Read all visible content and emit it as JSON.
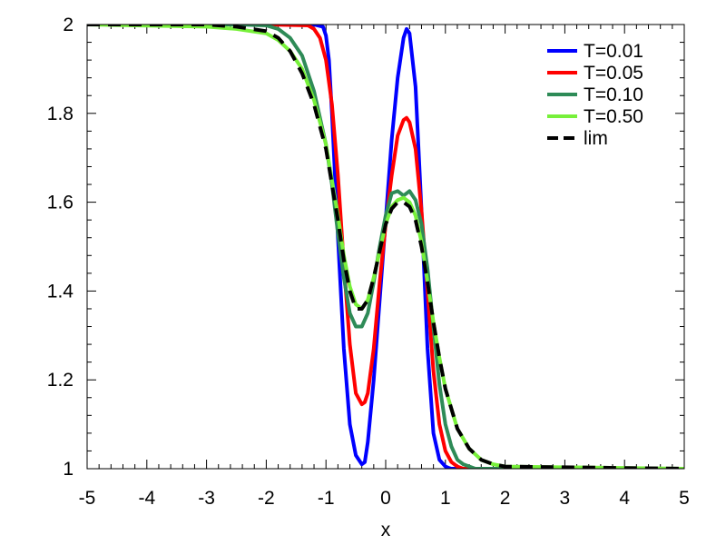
{
  "chart_data": {
    "type": "line",
    "title": "",
    "xlabel": "x",
    "ylabel": "",
    "xlim": [
      -5,
      5
    ],
    "ylim": [
      1,
      2
    ],
    "x_ticks": [
      -5,
      -4,
      -3,
      -2,
      -1,
      0,
      1,
      2,
      3,
      4,
      5
    ],
    "x_tick_labels": [
      "-5",
      "-4",
      "-3",
      "-2",
      "-1",
      "0",
      "1",
      "2",
      "3",
      "4",
      "5"
    ],
    "y_ticks": [
      1,
      1.2,
      1.4,
      1.6,
      1.8,
      2
    ],
    "y_tick_labels": [
      "1",
      "1.2",
      "1.4",
      "1.6",
      "1.8",
      "2"
    ],
    "grid": false,
    "legend_position": "top-right",
    "series": [
      {
        "name": "T=0.01",
        "color": "#0000ff",
        "dash": "solid",
        "x": [
          -5,
          -2,
          -1.2,
          -1.05,
          -1.0,
          -0.95,
          -0.9,
          -0.8,
          -0.7,
          -0.6,
          -0.5,
          -0.4,
          -0.35,
          -0.3,
          -0.2,
          -0.1,
          0,
          0.1,
          0.2,
          0.3,
          0.35,
          0.4,
          0.5,
          0.6,
          0.7,
          0.8,
          0.9,
          1.0,
          1.05,
          1.1,
          1.2,
          1.5,
          5
        ],
        "y": [
          2,
          2,
          2,
          1.995,
          1.975,
          1.92,
          1.8,
          1.52,
          1.27,
          1.1,
          1.03,
          1.01,
          1.015,
          1.06,
          1.2,
          1.38,
          1.56,
          1.74,
          1.88,
          1.97,
          1.99,
          1.98,
          1.86,
          1.58,
          1.27,
          1.08,
          1.02,
          1.005,
          1.002,
          1.0,
          1.0,
          1.0,
          1.0
        ]
      },
      {
        "name": "T=0.05",
        "color": "#ff0000",
        "dash": "solid",
        "x": [
          -5,
          -2,
          -1.3,
          -1.2,
          -1.1,
          -1.0,
          -0.9,
          -0.8,
          -0.7,
          -0.6,
          -0.5,
          -0.4,
          -0.35,
          -0.3,
          -0.2,
          -0.1,
          0,
          0.1,
          0.2,
          0.3,
          0.35,
          0.4,
          0.5,
          0.6,
          0.7,
          0.8,
          0.9,
          1.0,
          1.1,
          1.2,
          1.3,
          1.5,
          5
        ],
        "y": [
          2,
          2,
          1.998,
          1.99,
          1.97,
          1.92,
          1.82,
          1.66,
          1.46,
          1.28,
          1.17,
          1.145,
          1.15,
          1.17,
          1.27,
          1.42,
          1.55,
          1.66,
          1.75,
          1.785,
          1.79,
          1.78,
          1.72,
          1.58,
          1.4,
          1.22,
          1.1,
          1.04,
          1.015,
          1.005,
          1.0,
          1.0,
          1.0
        ]
      },
      {
        "name": "T=0.10",
        "color": "#2e8b57",
        "dash": "solid",
        "x": [
          -5,
          -2.5,
          -2,
          -1.8,
          -1.6,
          -1.4,
          -1.2,
          -1.0,
          -0.9,
          -0.8,
          -0.7,
          -0.6,
          -0.5,
          -0.4,
          -0.3,
          -0.2,
          -0.1,
          0,
          0.1,
          0.2,
          0.3,
          0.4,
          0.5,
          0.6,
          0.7,
          0.8,
          0.9,
          1.0,
          1.1,
          1.2,
          1.3,
          1.5,
          2,
          5
        ],
        "y": [
          2,
          2,
          1.998,
          1.99,
          1.97,
          1.93,
          1.85,
          1.73,
          1.64,
          1.53,
          1.43,
          1.35,
          1.32,
          1.32,
          1.35,
          1.42,
          1.5,
          1.57,
          1.62,
          1.625,
          1.615,
          1.625,
          1.605,
          1.55,
          1.45,
          1.32,
          1.19,
          1.1,
          1.05,
          1.02,
          1.01,
          1.0,
          1.0,
          1.0
        ]
      },
      {
        "name": "T=0.50",
        "color": "#77f03a",
        "dash": "solid",
        "x": [
          -5,
          -3,
          -2.5,
          -2,
          -1.8,
          -1.6,
          -1.4,
          -1.2,
          -1.0,
          -0.9,
          -0.8,
          -0.7,
          -0.6,
          -0.5,
          -0.4,
          -0.3,
          -0.2,
          -0.1,
          0,
          0.1,
          0.2,
          0.3,
          0.4,
          0.5,
          0.6,
          0.7,
          0.8,
          0.9,
          1.0,
          1.2,
          1.4,
          1.6,
          1.8,
          2.0,
          5
        ],
        "y": [
          2,
          1.995,
          1.99,
          1.98,
          1.965,
          1.94,
          1.9,
          1.83,
          1.73,
          1.65,
          1.57,
          1.48,
          1.41,
          1.37,
          1.36,
          1.38,
          1.43,
          1.49,
          1.55,
          1.59,
          1.605,
          1.61,
          1.6,
          1.57,
          1.51,
          1.42,
          1.33,
          1.25,
          1.18,
          1.09,
          1.045,
          1.02,
          1.01,
          1.005,
          1.0
        ]
      },
      {
        "name": "lim",
        "color": "#000000",
        "dash": "dashed",
        "x": [
          -5,
          -3,
          -2.5,
          -2,
          -1.8,
          -1.6,
          -1.4,
          -1.2,
          -1.0,
          -0.9,
          -0.8,
          -0.7,
          -0.6,
          -0.5,
          -0.4,
          -0.3,
          -0.2,
          -0.1,
          0,
          0.1,
          0.2,
          0.3,
          0.4,
          0.5,
          0.6,
          0.7,
          0.8,
          0.9,
          1.0,
          1.2,
          1.4,
          1.6,
          1.8,
          2.0,
          5
        ],
        "y": [
          2,
          2,
          1.995,
          1.985,
          1.97,
          1.94,
          1.89,
          1.82,
          1.72,
          1.64,
          1.56,
          1.47,
          1.4,
          1.36,
          1.36,
          1.38,
          1.43,
          1.49,
          1.55,
          1.585,
          1.6,
          1.6,
          1.59,
          1.56,
          1.5,
          1.42,
          1.33,
          1.25,
          1.18,
          1.09,
          1.045,
          1.02,
          1.01,
          1.005,
          1.0
        ]
      }
    ]
  }
}
